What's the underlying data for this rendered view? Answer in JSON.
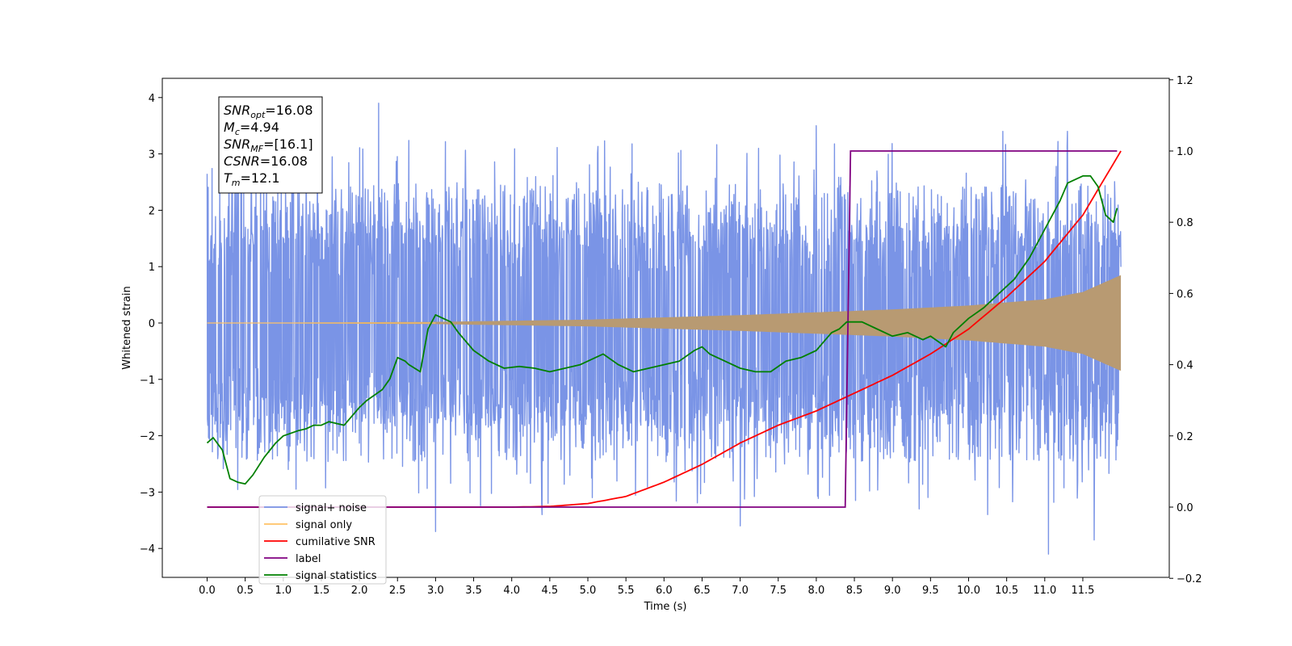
{
  "chart_data": {
    "type": "line",
    "xlabel": "Time (s)",
    "ylabel": "Whitened strain",
    "ylabel_right": "",
    "xlim": [
      -0.5875,
      12.6875
    ],
    "ylim": [
      -4.5,
      4.4
    ],
    "y2lim": [
      -0.2,
      1.2
    ],
    "x_ticks": [
      "0.0",
      "0.5",
      "1.0",
      "1.5",
      "2.0",
      "2.5",
      "3.0",
      "3.5",
      "4.0",
      "4.5",
      "5.0",
      "5.5",
      "6.0",
      "6.5",
      "7.0",
      "7.5",
      "8.0",
      "8.5",
      "9.0",
      "9.5",
      "10.0",
      "10.5",
      "11.0",
      "11.5"
    ],
    "y_ticks": [
      "4",
      "3",
      "2",
      "1",
      "0",
      "−1",
      "−2",
      "−3",
      "−4"
    ],
    "y2_ticks": [
      "1.2",
      "1.0",
      "0.8",
      "0.6",
      "0.4",
      "0.2",
      "0.0",
      "−0.2"
    ],
    "annotation": {
      "lines": [
        {
          "name": "SNR",
          "sub": "opt",
          "rest": "=16.08"
        },
        {
          "name": "M",
          "sub": "c",
          "rest": "=4.94"
        },
        {
          "name": "SNR",
          "sub": "MF",
          "rest": "=[16.1]"
        },
        {
          "name": "CSNR",
          "sub": "",
          "rest": "=16.08"
        },
        {
          "name": "T",
          "sub": "m",
          "rest": "=12.1"
        }
      ]
    },
    "legend": {
      "placement": "lower-left",
      "entries": [
        {
          "label": "signal+ noise",
          "color": "#7a94e6"
        },
        {
          "label": "signal only",
          "color": "#ffc266"
        },
        {
          "label": "cumilative SNR",
          "color": "#ff0000"
        },
        {
          "label": "label",
          "color": "#800080"
        },
        {
          "label": "signal statistics",
          "color": "#008000"
        }
      ]
    },
    "series": [
      {
        "name": "signal+ noise",
        "axis": "left",
        "color": "#7a94e6",
        "x_range": [
          0.0,
          12.0
        ],
        "typical_amplitude": 1.3,
        "peak_values": [
          {
            "x": 2.25,
            "y": 3.9
          },
          {
            "x": 1.3,
            "y": 3.4
          },
          {
            "x": 8.0,
            "y": 3.5
          },
          {
            "x": 10.45,
            "y": 3.4
          },
          {
            "x": 11.3,
            "y": 3.4
          },
          {
            "x": 3.0,
            "y": -3.7
          },
          {
            "x": 7.0,
            "y": -3.6
          },
          {
            "x": 4.4,
            "y": -3.4
          },
          {
            "x": 11.05,
            "y": -4.1
          },
          {
            "x": 11.65,
            "y": -3.85
          },
          {
            "x": 10.25,
            "y": -3.4
          },
          {
            "x": 9.35,
            "y": -3.3
          }
        ]
      },
      {
        "name": "signal only",
        "axis": "left",
        "color": "#ffc266",
        "envelope": {
          "x": [
            0.0,
            3.0,
            5.0,
            6.0,
            7.0,
            8.0,
            9.0,
            10.0,
            11.0,
            11.5,
            12.0
          ],
          "amplitude": [
            0.0,
            0.02,
            0.06,
            0.1,
            0.14,
            0.19,
            0.24,
            0.31,
            0.42,
            0.55,
            0.85
          ]
        }
      },
      {
        "name": "cumilative SNR",
        "axis": "right",
        "color": "#ff0000",
        "x": [
          0.0,
          4.0,
          4.5,
          5.0,
          5.5,
          6.0,
          6.5,
          7.0,
          7.5,
          8.0,
          8.5,
          9.0,
          9.5,
          10.0,
          10.5,
          11.0,
          11.5,
          12.0
        ],
        "y": [
          0.0,
          0.0,
          0.002,
          0.01,
          0.03,
          0.07,
          0.12,
          0.18,
          0.23,
          0.27,
          0.32,
          0.37,
          0.43,
          0.5,
          0.59,
          0.69,
          0.82,
          1.0
        ]
      },
      {
        "name": "label",
        "axis": "right",
        "color": "#800080",
        "x": [
          0.0,
          8.38,
          8.45,
          11.95
        ],
        "y": [
          0.0,
          0.0,
          1.0,
          1.0
        ]
      },
      {
        "name": "signal statistics",
        "axis": "right",
        "color": "#008000",
        "x": [
          0.0,
          0.08,
          0.2,
          0.3,
          0.4,
          0.5,
          0.6,
          0.75,
          0.9,
          1.0,
          1.2,
          1.3,
          1.4,
          1.5,
          1.6,
          1.8,
          2.0,
          2.1,
          2.3,
          2.4,
          2.5,
          2.6,
          2.65,
          2.8,
          2.9,
          3.0,
          3.1,
          3.2,
          3.3,
          3.5,
          3.7,
          3.9,
          4.1,
          4.3,
          4.5,
          4.7,
          4.9,
          5.0,
          5.2,
          5.4,
          5.6,
          5.8,
          6.0,
          6.2,
          6.4,
          6.5,
          6.6,
          6.8,
          7.0,
          7.2,
          7.4,
          7.6,
          7.8,
          8.0,
          8.2,
          8.3,
          8.4,
          8.6,
          8.8,
          9.0,
          9.2,
          9.4,
          9.5,
          9.7,
          9.8,
          10.0,
          10.2,
          10.4,
          10.6,
          10.8,
          11.0,
          11.2,
          11.3,
          11.4,
          11.5,
          11.6,
          11.7,
          11.8,
          11.9,
          11.95
        ],
        "y": [
          0.18,
          0.195,
          0.16,
          0.08,
          0.07,
          0.065,
          0.09,
          0.14,
          0.18,
          0.2,
          0.215,
          0.22,
          0.23,
          0.23,
          0.24,
          0.23,
          0.28,
          0.3,
          0.33,
          0.36,
          0.42,
          0.41,
          0.4,
          0.38,
          0.5,
          0.54,
          0.53,
          0.52,
          0.49,
          0.44,
          0.41,
          0.39,
          0.395,
          0.39,
          0.38,
          0.39,
          0.4,
          0.41,
          0.43,
          0.4,
          0.38,
          0.39,
          0.4,
          0.41,
          0.44,
          0.45,
          0.43,
          0.41,
          0.39,
          0.38,
          0.38,
          0.41,
          0.42,
          0.44,
          0.49,
          0.5,
          0.52,
          0.52,
          0.5,
          0.48,
          0.49,
          0.47,
          0.48,
          0.45,
          0.49,
          0.53,
          0.56,
          0.6,
          0.64,
          0.7,
          0.78,
          0.86,
          0.91,
          0.92,
          0.93,
          0.93,
          0.9,
          0.82,
          0.8,
          0.84
        ]
      }
    ]
  }
}
